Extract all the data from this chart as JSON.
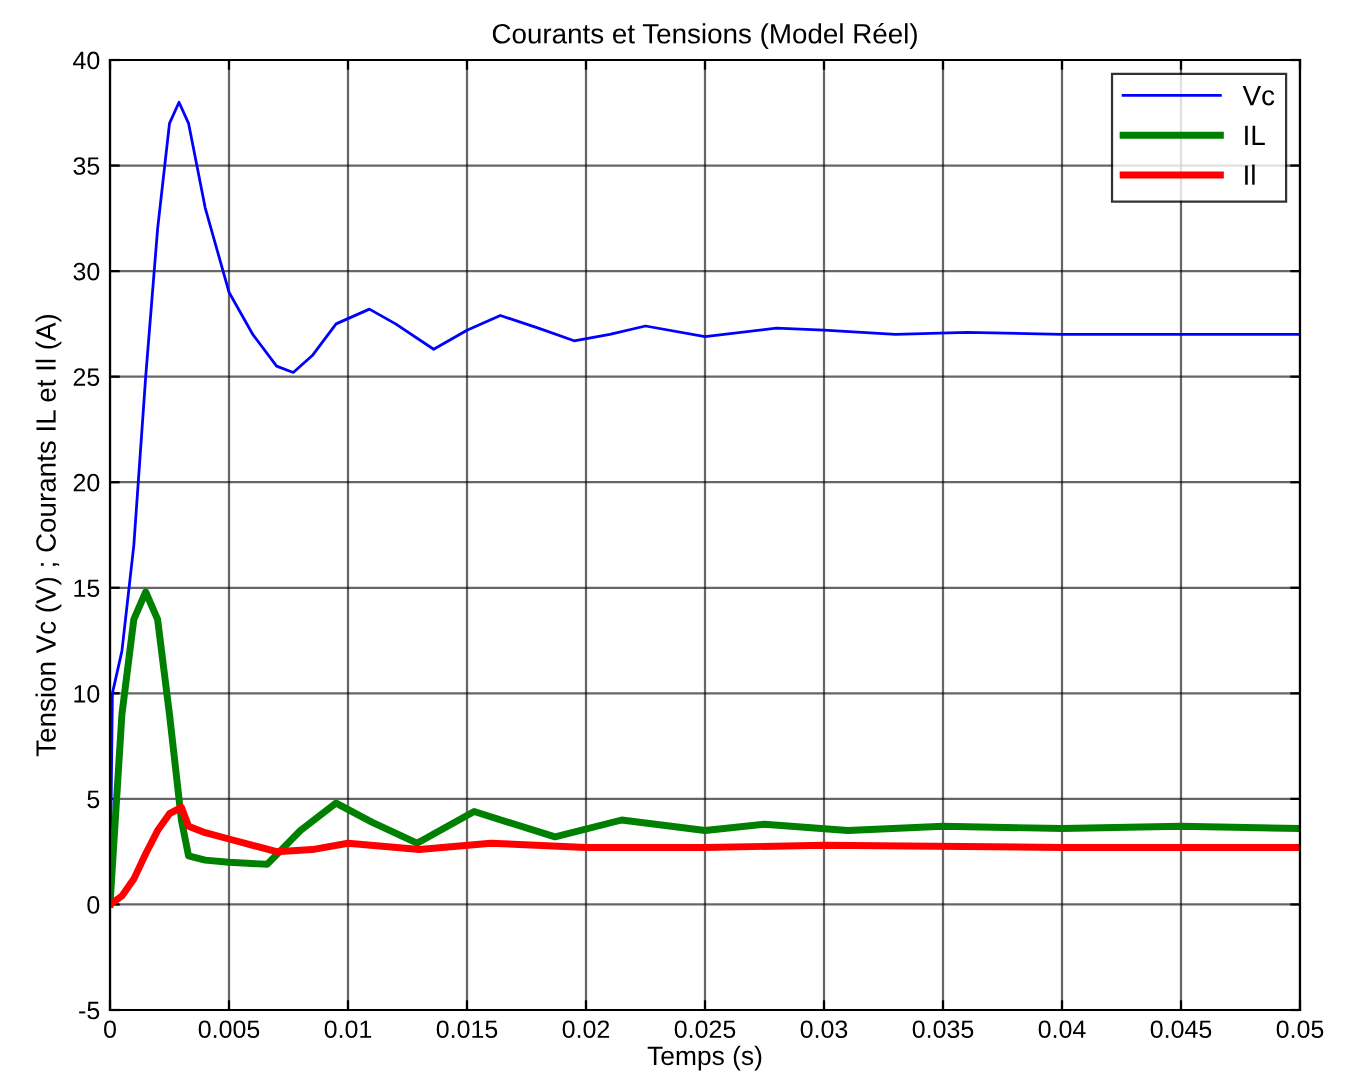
{
  "chart_data": {
    "type": "line",
    "title": "Courants et Tensions (Model Réel)",
    "xlabel": "Temps (s)",
    "ylabel": "Tension Vc (V) ; Courants IL et Il (A)",
    "xlim": [
      0,
      0.05
    ],
    "xticks": [
      0,
      0.005,
      0.01,
      0.015,
      0.02,
      0.025,
      0.03,
      0.035,
      0.04,
      0.045,
      0.05
    ],
    "ylim": [
      -5,
      40
    ],
    "yticks": [
      -5,
      0,
      5,
      10,
      15,
      20,
      25,
      30,
      35,
      40
    ],
    "grid": true,
    "legend": "top right",
    "marker": "none",
    "line_style": "solid",
    "series": [
      {
        "name": "Vc",
        "color": "#0000ff",
        "x": [
          0,
          0.0001,
          0.0005,
          0.001,
          0.0015,
          0.002,
          0.0025,
          0.0029,
          0.0033,
          0.004,
          0.005,
          0.006,
          0.007,
          0.0077,
          0.0085,
          0.0095,
          0.0109,
          0.012,
          0.0136,
          0.015,
          0.0164,
          0.018,
          0.0195,
          0.021,
          0.0225,
          0.025,
          0.028,
          0.03,
          0.033,
          0.036,
          0.04,
          0.045,
          0.05
        ],
        "values": [
          0,
          10,
          12,
          17,
          25,
          32,
          37,
          38,
          37,
          33,
          29,
          27,
          25.5,
          25.2,
          26,
          27.5,
          28.2,
          27.5,
          26.3,
          27.2,
          27.9,
          27.3,
          26.7,
          27.0,
          27.4,
          26.9,
          27.3,
          27.2,
          27.0,
          27.1,
          27.0,
          27.0,
          27.0
        ]
      },
      {
        "name": "IL",
        "color": "#008000",
        "x": [
          0,
          0.0005,
          0.001,
          0.0015,
          0.002,
          0.0025,
          0.003,
          0.0033,
          0.004,
          0.005,
          0.0066,
          0.008,
          0.0095,
          0.011,
          0.0129,
          0.0153,
          0.0187,
          0.0215,
          0.025,
          0.0275,
          0.031,
          0.035,
          0.04,
          0.045,
          0.05
        ],
        "values": [
          0,
          9,
          13.5,
          14.8,
          13.5,
          9,
          4,
          2.3,
          2.1,
          2.0,
          1.9,
          3.5,
          4.8,
          3.9,
          2.9,
          4.4,
          3.2,
          4.0,
          3.5,
          3.8,
          3.5,
          3.7,
          3.6,
          3.7,
          3.6
        ]
      },
      {
        "name": "Il",
        "color": "#ff0000",
        "x": [
          0,
          0.0005,
          0.001,
          0.0015,
          0.002,
          0.0025,
          0.003,
          0.0033,
          0.004,
          0.005,
          0.006,
          0.007,
          0.0085,
          0.01,
          0.013,
          0.016,
          0.02,
          0.025,
          0.03,
          0.04,
          0.05
        ],
        "values": [
          0,
          0.4,
          1.2,
          2.4,
          3.5,
          4.3,
          4.6,
          3.7,
          3.4,
          3.1,
          2.8,
          2.5,
          2.6,
          2.9,
          2.6,
          2.9,
          2.7,
          2.7,
          2.8,
          2.7,
          2.7
        ]
      }
    ]
  }
}
